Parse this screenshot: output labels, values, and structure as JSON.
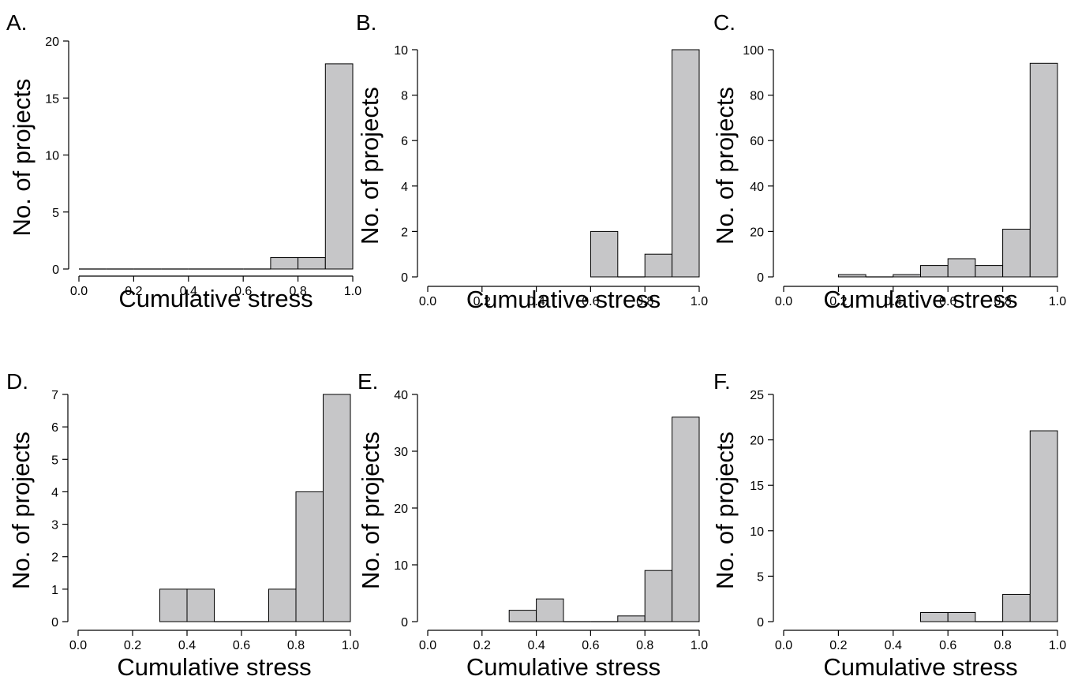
{
  "chart_data": [
    {
      "type": "bar",
      "panel_label": "A.",
      "xlabel": "Cumulative stress",
      "ylabel": "No. of projects",
      "xlim": [
        0.0,
        1.0
      ],
      "ylim": [
        0,
        20
      ],
      "x_ticks": [
        "0.0",
        "0.2",
        "0.4",
        "0.6",
        "0.8",
        "1.0"
      ],
      "y_ticks": [
        "0",
        "5",
        "10",
        "15",
        "20"
      ],
      "bin_edges": [
        0.0,
        0.1,
        0.2,
        0.3,
        0.4,
        0.5,
        0.6,
        0.7,
        0.8,
        0.9,
        1.0
      ],
      "values": [
        0,
        0,
        0,
        0,
        0,
        0,
        0,
        1,
        1,
        18
      ],
      "grid": false
    },
    {
      "type": "bar",
      "panel_label": "B.",
      "xlabel": "Cumulative stress",
      "ylabel": "No. of projects",
      "xlim": [
        0.0,
        1.0
      ],
      "ylim": [
        0,
        10
      ],
      "x_ticks": [
        "0.0",
        "0.2",
        "0.4",
        "0.6",
        "0.8",
        "1.0"
      ],
      "y_ticks": [
        "0",
        "2",
        "4",
        "6",
        "8",
        "10"
      ],
      "bin_edges": [
        0.6,
        0.7,
        0.8,
        0.9,
        1.0
      ],
      "values": [
        2,
        0,
        1,
        10
      ],
      "grid": false
    },
    {
      "type": "bar",
      "panel_label": "C.",
      "xlabel": "Cumulative stress",
      "ylabel": "No. of projects",
      "xlim": [
        0.0,
        1.0
      ],
      "ylim": [
        0,
        100
      ],
      "x_ticks": [
        "0.0",
        "0.2",
        "0.4",
        "0.6",
        "0.8",
        "1.0"
      ],
      "y_ticks": [
        "0",
        "20",
        "40",
        "60",
        "80",
        "100"
      ],
      "bin_edges": [
        0.2,
        0.3,
        0.4,
        0.5,
        0.6,
        0.7,
        0.8,
        0.9,
        1.0
      ],
      "values": [
        1,
        0,
        1,
        5,
        8,
        5,
        21,
        94
      ],
      "grid": false
    },
    {
      "type": "bar",
      "panel_label": "D.",
      "xlabel": "Cumulative stress",
      "ylabel": "No. of projects",
      "xlim": [
        0.0,
        1.0
      ],
      "ylim": [
        0,
        7
      ],
      "x_ticks": [
        "0.0",
        "0.2",
        "0.4",
        "0.6",
        "0.8",
        "1.0"
      ],
      "y_ticks": [
        "0",
        "1",
        "2",
        "3",
        "4",
        "5",
        "6",
        "7"
      ],
      "bin_edges": [
        0.3,
        0.4,
        0.5,
        0.6,
        0.7,
        0.8,
        0.9,
        1.0
      ],
      "values": [
        1,
        1,
        0,
        0,
        1,
        4,
        7
      ],
      "grid": false
    },
    {
      "type": "bar",
      "panel_label": "E.",
      "xlabel": "Cumulative stress",
      "ylabel": "No. of projects",
      "xlim": [
        0.0,
        1.0
      ],
      "ylim": [
        0,
        40
      ],
      "x_ticks": [
        "0.0",
        "0.2",
        "0.4",
        "0.6",
        "0.8",
        "1.0"
      ],
      "y_ticks": [
        "0",
        "10",
        "20",
        "30",
        "40"
      ],
      "bin_edges": [
        0.3,
        0.4,
        0.5,
        0.6,
        0.7,
        0.8,
        0.9,
        1.0
      ],
      "values": [
        2,
        4,
        0,
        0,
        1,
        9,
        36
      ],
      "grid": false
    },
    {
      "type": "bar",
      "panel_label": "F.",
      "xlabel": "Cumulative stress",
      "ylabel": "No. of projects",
      "xlim": [
        0.0,
        1.0
      ],
      "ylim": [
        0,
        25
      ],
      "x_ticks": [
        "0.0",
        "0.2",
        "0.4",
        "0.6",
        "0.8",
        "1.0"
      ],
      "y_ticks": [
        "0",
        "5",
        "10",
        "15",
        "20",
        "25"
      ],
      "bin_edges": [
        0.5,
        0.6,
        0.7,
        0.8,
        0.9,
        1.0
      ],
      "values": [
        1,
        1,
        0,
        3,
        21
      ],
      "grid": false
    }
  ]
}
